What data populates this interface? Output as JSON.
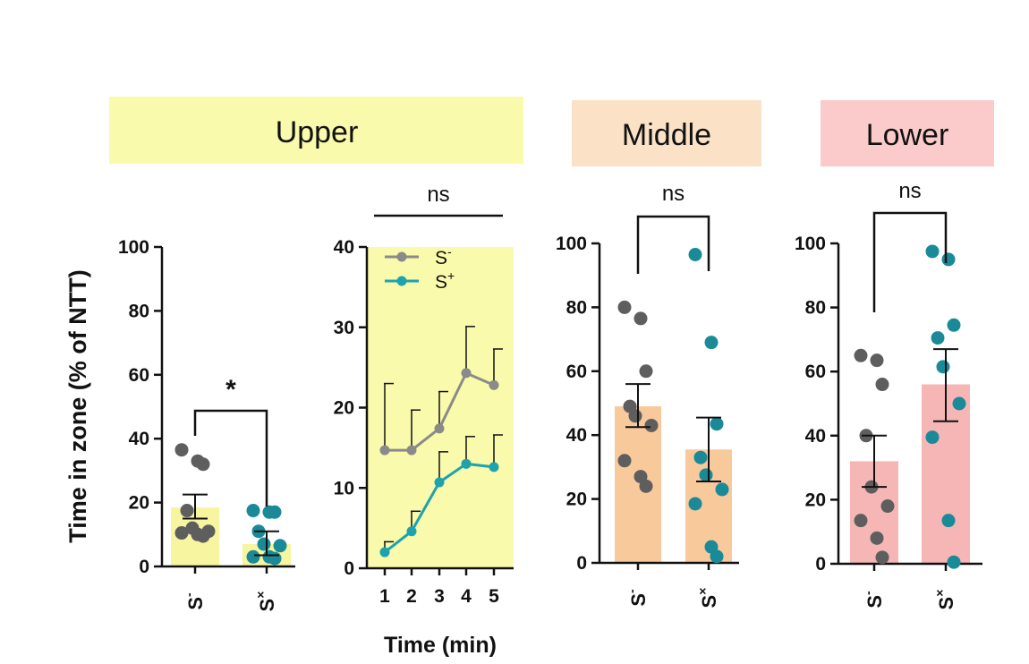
{
  "headers": {
    "upper": "Upper",
    "middle": "Middle",
    "lower": "Lower"
  },
  "colors": {
    "upper_bg": "#fafaac",
    "middle_bg": "#fbe1c6",
    "lower_bg": "#fbcaca",
    "upper_bar": "#f7f5a0",
    "middle_bar": "#f8c99b",
    "lower_bar": "#f6b6b6",
    "gray": "#5e5e5e",
    "teal": "#1a8a99",
    "line_gray": "#8a8a8a",
    "line_teal": "#1ea3ae"
  },
  "y_axis_label": "Time in zone (% of NTT)",
  "chart_data": [
    {
      "id": "upper-bar",
      "type": "bar",
      "categories": [
        "S-",
        "S+"
      ],
      "ylim": [
        0,
        100
      ],
      "yticks": [
        0,
        20,
        40,
        60,
        80,
        100
      ],
      "means": [
        18.5,
        7
      ],
      "errors": [
        [
          15,
          22.5
        ],
        [
          3.5,
          11
        ]
      ],
      "points": [
        [
          36.5,
          33,
          32,
          17.5,
          12,
          11,
          10.5,
          10,
          9.5
        ],
        [
          17.5,
          17,
          17,
          11,
          7,
          6.5,
          3,
          3,
          2.5
        ]
      ],
      "significance": "*"
    },
    {
      "id": "upper-line",
      "type": "line",
      "x": [
        1,
        2,
        3,
        4,
        5
      ],
      "ylim": [
        0,
        40
      ],
      "yticks": [
        0,
        10,
        20,
        30,
        40
      ],
      "xlabel": "Time (min)",
      "series": [
        {
          "name": "S-",
          "values": [
            14.7,
            14.7,
            17.4,
            24.3,
            22.8
          ],
          "errors": [
            8.3,
            5,
            4.6,
            5.8,
            4.5
          ]
        },
        {
          "name": "S+",
          "values": [
            2,
            4.6,
            10.7,
            13,
            12.6
          ],
          "errors": [
            1.3,
            2.5,
            3.8,
            3.4,
            4
          ]
        }
      ],
      "legend": [
        {
          "base": "S",
          "sup": "-"
        },
        {
          "base": "S",
          "sup": "+"
        }
      ],
      "significance": "ns"
    },
    {
      "id": "middle-bar",
      "type": "bar",
      "categories": [
        "S-",
        "S+"
      ],
      "ylim": [
        0,
        100
      ],
      "yticks": [
        0,
        20,
        40,
        60,
        80,
        100
      ],
      "means": [
        49,
        35.5
      ],
      "errors": [
        [
          42.5,
          56
        ],
        [
          25.5,
          45.5
        ]
      ],
      "points": [
        [
          80,
          76.5,
          60,
          49,
          46,
          43,
          32,
          27,
          24
        ],
        [
          96.5,
          69,
          43.5,
          33,
          27.5,
          23,
          18.5,
          5,
          2
        ]
      ],
      "significance": "ns"
    },
    {
      "id": "lower-bar",
      "type": "bar",
      "categories": [
        "S-",
        "S+"
      ],
      "ylim": [
        0,
        100
      ],
      "yticks": [
        0,
        20,
        40,
        60,
        80,
        100
      ],
      "means": [
        32,
        56
      ],
      "errors": [
        [
          24,
          40
        ],
        [
          44.5,
          67
        ]
      ],
      "points": [
        [
          65,
          63.5,
          56,
          40,
          24,
          18,
          13.5,
          8,
          2
        ],
        [
          97.5,
          95,
          74.5,
          70.5,
          61.5,
          50,
          39.5,
          13.5,
          0.5
        ]
      ],
      "significance": "ns"
    }
  ]
}
